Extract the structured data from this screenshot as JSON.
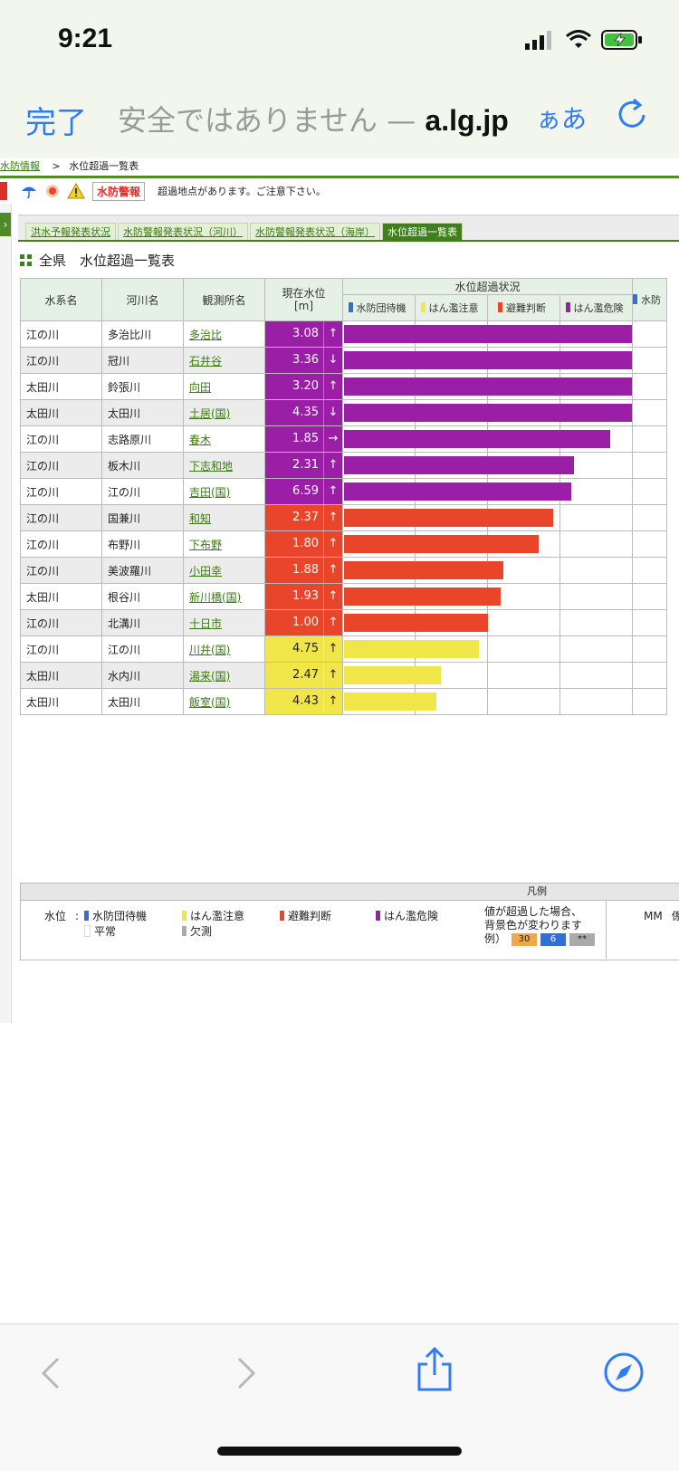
{
  "status": {
    "time": "9:21"
  },
  "browser": {
    "done": "完了",
    "url_prefix": "安全ではありません — ",
    "url_domain": "a.lg.jp",
    "aa": "ぁあ"
  },
  "breadcrumb": {
    "link": "水防情報",
    "sep": ">",
    "current": "水位超過一覧表"
  },
  "alert": {
    "badge": "水防警報",
    "message": "超過地点があります。ご注意下さい。"
  },
  "tabs": [
    "洪水予報発表状況",
    "水防警報発表状況（河川）",
    "水防警報発表状況（海岸）",
    "水位超過一覧表"
  ],
  "section_title": "全県　水位超過一覧表",
  "table": {
    "headers": {
      "system": "水系名",
      "river": "河川名",
      "station": "観測所名",
      "level": "現在水位",
      "level_unit": "[m]",
      "status": "水位超過状況",
      "next_col": "水防"
    },
    "status_keys": [
      "水防団待機",
      "はん濫注意",
      "避難判断",
      "はん濫危険"
    ],
    "rows": [
      {
        "system": "江の川",
        "river": "多治比川",
        "station": "多治比",
        "level": "3.08",
        "arrow": "↑",
        "class": "purple",
        "fill": 1.0
      },
      {
        "system": "江の川",
        "river": "冠川",
        "station": "石井谷",
        "level": "3.36",
        "arrow": "↓",
        "class": "purple",
        "fill": 1.0
      },
      {
        "system": "太田川",
        "river": "鈴張川",
        "station": "向田",
        "level": "3.20",
        "arrow": "↑",
        "class": "purple",
        "fill": 1.0
      },
      {
        "system": "太田川",
        "river": "太田川",
        "station": "土居(国)",
        "level": "4.35",
        "arrow": "↓",
        "class": "purple",
        "fill": 1.0
      },
      {
        "system": "江の川",
        "river": "志路原川",
        "station": "春木",
        "level": "1.85",
        "arrow": "→",
        "class": "purple",
        "fill": 0.925
      },
      {
        "system": "江の川",
        "river": "板木川",
        "station": "下志和地",
        "level": "2.31",
        "arrow": "↑",
        "class": "purple",
        "fill": 0.8
      },
      {
        "system": "江の川",
        "river": "江の川",
        "station": "吉田(国)",
        "level": "6.59",
        "arrow": "↑",
        "class": "purple",
        "fill": 0.79
      },
      {
        "system": "江の川",
        "river": "国兼川",
        "station": "和知",
        "level": "2.37",
        "arrow": "↑",
        "class": "red",
        "fill": 0.725
      },
      {
        "system": "江の川",
        "river": "布野川",
        "station": "下布野",
        "level": "1.80",
        "arrow": "↑",
        "class": "red",
        "fill": 0.675
      },
      {
        "system": "江の川",
        "river": "美波羅川",
        "station": "小田幸",
        "level": "1.88",
        "arrow": "↑",
        "class": "red",
        "fill": 0.555
      },
      {
        "system": "太田川",
        "river": "根谷川",
        "station": "新川橋(国)",
        "level": "1.93",
        "arrow": "↑",
        "class": "red",
        "fill": 0.545
      },
      {
        "system": "江の川",
        "river": "北溝川",
        "station": "十日市",
        "level": "1.00",
        "arrow": "↑",
        "class": "red",
        "fill": 0.5
      },
      {
        "system": "江の川",
        "river": "江の川",
        "station": "川井(国)",
        "level": "4.75",
        "arrow": "↑",
        "class": "yellow",
        "fill": 0.47
      },
      {
        "system": "太田川",
        "river": "水内川",
        "station": "湯来(国)",
        "level": "2.47",
        "arrow": "↑",
        "class": "yellow",
        "fill": 0.335
      },
      {
        "system": "太田川",
        "river": "太田川",
        "station": "飯室(国)",
        "level": "4.43",
        "arrow": "↑",
        "class": "yellow",
        "fill": 0.32
      }
    ]
  },
  "legend": {
    "title": "凡例",
    "label": "水位",
    "colon": ":",
    "items": [
      "水防団待機",
      "はん濫注意",
      "避難判断",
      "はん濫危険",
      "平常",
      "欠測"
    ],
    "note": [
      "値が超過した場合、",
      "背景色が変わります",
      "例）"
    ],
    "examples": [
      "30",
      "6",
      "**"
    ],
    "mm": "MM",
    "mm_tail": "係"
  },
  "colors": {
    "purple": "#9b1fa6",
    "red": "#e8452a",
    "yellow": "#f0e64a",
    "blue": "#2f6fd6",
    "green": "#3f7f1c",
    "gray": "#aaaaaa",
    "orange": "#f0a84a"
  }
}
